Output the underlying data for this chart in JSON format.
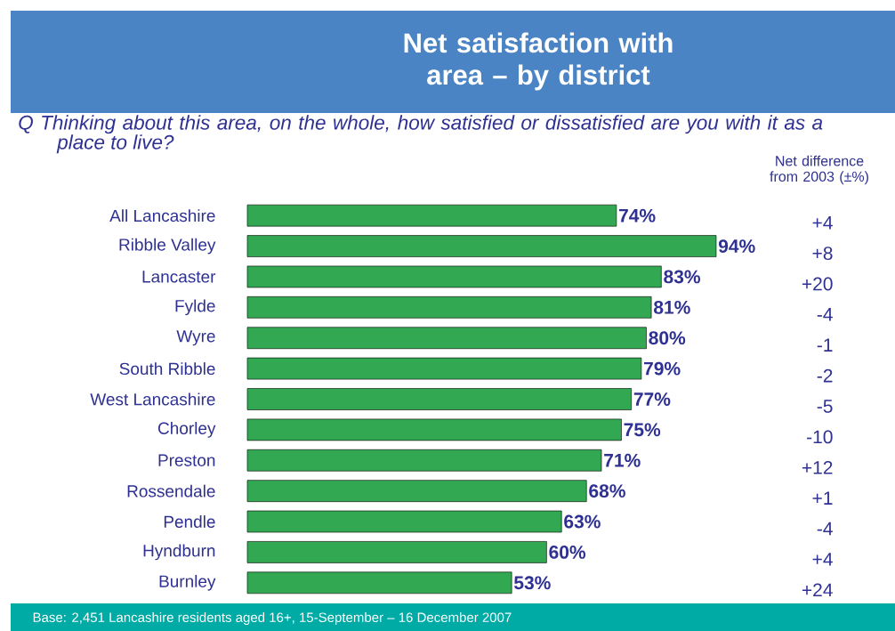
{
  "chart_data": {
    "type": "bar",
    "orientation": "horizontal",
    "title": "Net satisfaction with area – by district",
    "subtitle": "Q Thinking about this area, on the whole, how satisfied or dissatisfied are you with it as a place to live?",
    "categories": [
      "All Lancashire",
      "Ribble Valley",
      "Lancaster",
      "Fylde",
      "Wyre",
      "South Ribble",
      "West Lancashire",
      "Chorley",
      "Preston",
      "Rossendale",
      "Pendle",
      "Hyndburn",
      "Burnley"
    ],
    "values": [
      74,
      94,
      83,
      81,
      80,
      79,
      77,
      75,
      71,
      68,
      63,
      60,
      53
    ],
    "value_labels": [
      "74%",
      "94%",
      "83%",
      "81%",
      "80%",
      "79%",
      "77%",
      "75%",
      "71%",
      "68%",
      "63%",
      "60%",
      "53%"
    ],
    "color": "#33a852",
    "annotations": [
      "Net difference from 2003 (±%)",
      "+4",
      "+8",
      "+20",
      "-4",
      "-1",
      "-2",
      "-5",
      "-10",
      "+12",
      "+1",
      "-4",
      "+4",
      "+24",
      "Base: 2,451 Lancashire residents aged 16+, 15-September – 16 December 2007"
    ]
  }
}
